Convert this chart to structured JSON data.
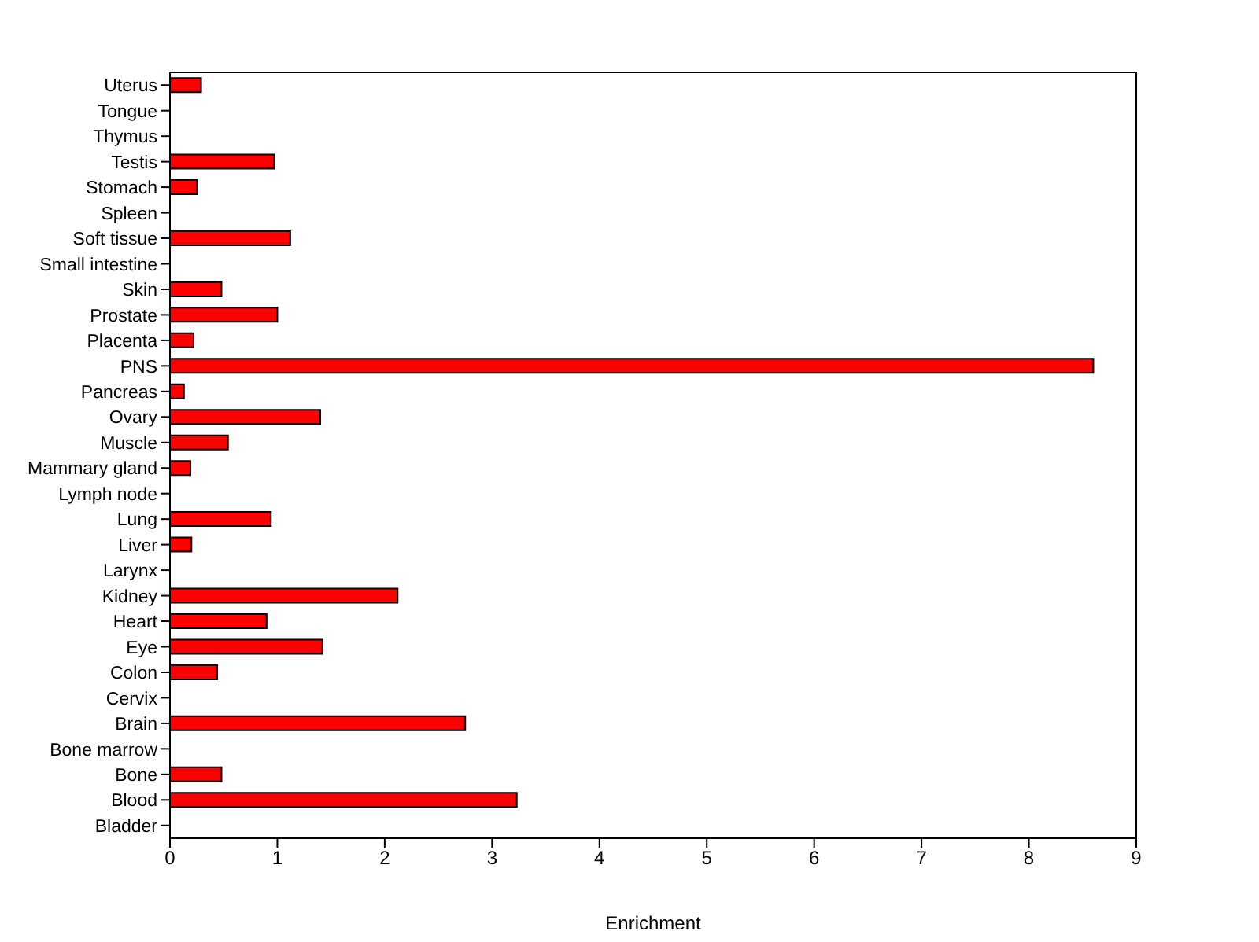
{
  "chart_data": {
    "type": "bar",
    "orientation": "horizontal",
    "xlabel": "Enrichment",
    "categories": [
      "Uterus",
      "Tongue",
      "Thymus",
      "Testis",
      "Stomach",
      "Spleen",
      "Soft tissue",
      "Small intestine",
      "Skin",
      "Prostate",
      "Placenta",
      "PNS",
      "Pancreas",
      "Ovary",
      "Muscle",
      "Mammary gland",
      "Lymph node",
      "Lung",
      "Liver",
      "Larynx",
      "Kidney",
      "Heart",
      "Eye",
      "Colon",
      "Cervix",
      "Brain",
      "Bone marrow",
      "Bone",
      "Blood",
      "Bladder"
    ],
    "values": [
      0.29,
      0,
      0,
      0.97,
      0.25,
      0,
      1.12,
      0,
      0.48,
      1.0,
      0.22,
      8.6,
      0.13,
      1.4,
      0.54,
      0.19,
      0,
      0.94,
      0.2,
      0,
      2.12,
      0.9,
      1.42,
      0.44,
      0,
      2.75,
      0,
      0.48,
      3.23,
      0
    ],
    "color": "#ff0000",
    "xlim": [
      0,
      9
    ],
    "xticks": [
      0,
      1,
      2,
      3,
      4,
      5,
      6,
      7,
      8,
      9
    ],
    "grid": false,
    "legend": false
  }
}
